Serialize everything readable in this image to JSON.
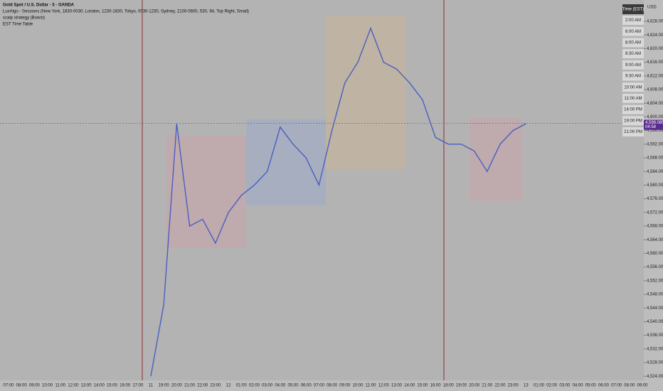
{
  "header": {
    "symbol": "Gold Spot / U.S. Dollar · 5 · OANDA",
    "indicators": [
      "LuxAlgo - Sessions (New York, 1830-0030, London, 1230-1830, Tokyo, 0030-1230, Sydney, 2100-0600, 530, 94, Top Right, Small)",
      "scalp strategy (Bowst)",
      "EST Time Table"
    ]
  },
  "axis_currency": "USD",
  "countdown": "04:58",
  "time_table": {
    "title": "Time (EST)",
    "rows": [
      "2:00 AM",
      "6:00 AM",
      "8:00 AM",
      "8:30 AM",
      "9:00 AM",
      "9:30 AM",
      "10:00 AM",
      "11:00 AM",
      "14:00 PM",
      "19:00 PM",
      "21:00 PM"
    ]
  },
  "chart_data": {
    "type": "line",
    "color": "#4a5fc0",
    "categories": [
      "07:00",
      "08:00",
      "09:00",
      "10:00",
      "11:00",
      "12:00",
      "13:00",
      "14:00",
      "15:00",
      "16:00",
      "17:00",
      "11",
      "19:00",
      "20:00",
      "21:00",
      "22:00",
      "23:00",
      "12",
      "01:00",
      "02:00",
      "03:00",
      "04:00",
      "05:00",
      "06:00",
      "07:00",
      "08:00",
      "09:00",
      "10:00",
      "11:00",
      "12:00",
      "13:00",
      "14:00",
      "15:00",
      "16:00",
      "18:00",
      "19:00",
      "20:00",
      "21:00",
      "22:00",
      "23:00",
      "13",
      "01:00",
      "02:00",
      "03:00",
      "04:00",
      "05:00",
      "06:00",
      "07:00",
      "08:00",
      "09:00"
    ],
    "values": [
      null,
      null,
      null,
      null,
      null,
      null,
      null,
      null,
      null,
      null,
      null,
      4524,
      4545,
      4598,
      4568,
      4570,
      4563,
      4572,
      4577,
      4580,
      4584,
      4597,
      4592,
      4588,
      4580,
      4596,
      4610,
      4616,
      4626,
      4616,
      4614,
      4610,
      4605,
      4594,
      4592,
      4592,
      4590,
      4584,
      4592,
      4596,
      4598,
      null,
      null,
      null,
      null,
      null,
      null,
      null,
      null,
      null
    ],
    "ylim": [
      4522.8,
      4634.25
    ],
    "yticks": [
      {
        "value": 4524,
        "label": "4,524.000"
      },
      {
        "value": 4528,
        "label": "4,528.000"
      },
      {
        "value": 4532,
        "label": "4,532.000"
      },
      {
        "value": 4536,
        "label": "4,536.000"
      },
      {
        "value": 4540,
        "label": "4,540.000"
      },
      {
        "value": 4544,
        "label": "4,544.000"
      },
      {
        "value": 4548,
        "label": "4,548.000"
      },
      {
        "value": 4552,
        "label": "4,552.000"
      },
      {
        "value": 4556,
        "label": "4,556.000"
      },
      {
        "value": 4560,
        "label": "4,560.000"
      },
      {
        "value": 4564,
        "label": "4,564.000"
      },
      {
        "value": 4568,
        "label": "4,568.000"
      },
      {
        "value": 4572,
        "label": "4,572.000"
      },
      {
        "value": 4576,
        "label": "4,576.000"
      },
      {
        "value": 4580,
        "label": "4,580.000"
      },
      {
        "value": 4584,
        "label": "4,584.000"
      },
      {
        "value": 4588,
        "label": "4,588.000"
      },
      {
        "value": 4592,
        "label": "4,592.000"
      },
      {
        "value": 4596,
        "label": "4,596.000"
      },
      {
        "value": 4600,
        "label": "4,600.000"
      },
      {
        "value": 4604,
        "label": "4,604.000"
      },
      {
        "value": 4608,
        "label": "4,608.000"
      },
      {
        "value": 4612,
        "label": "4,612.000"
      },
      {
        "value": 4616,
        "label": "4,616.000"
      },
      {
        "value": 4620,
        "label": "4,620.000"
      },
      {
        "value": 4624,
        "label": "4,624.000"
      },
      {
        "value": 4628,
        "label": "4,628.000"
      }
    ],
    "grid": false,
    "last_price": {
      "value": 4598.085,
      "label": "4,598.085"
    }
  }
}
